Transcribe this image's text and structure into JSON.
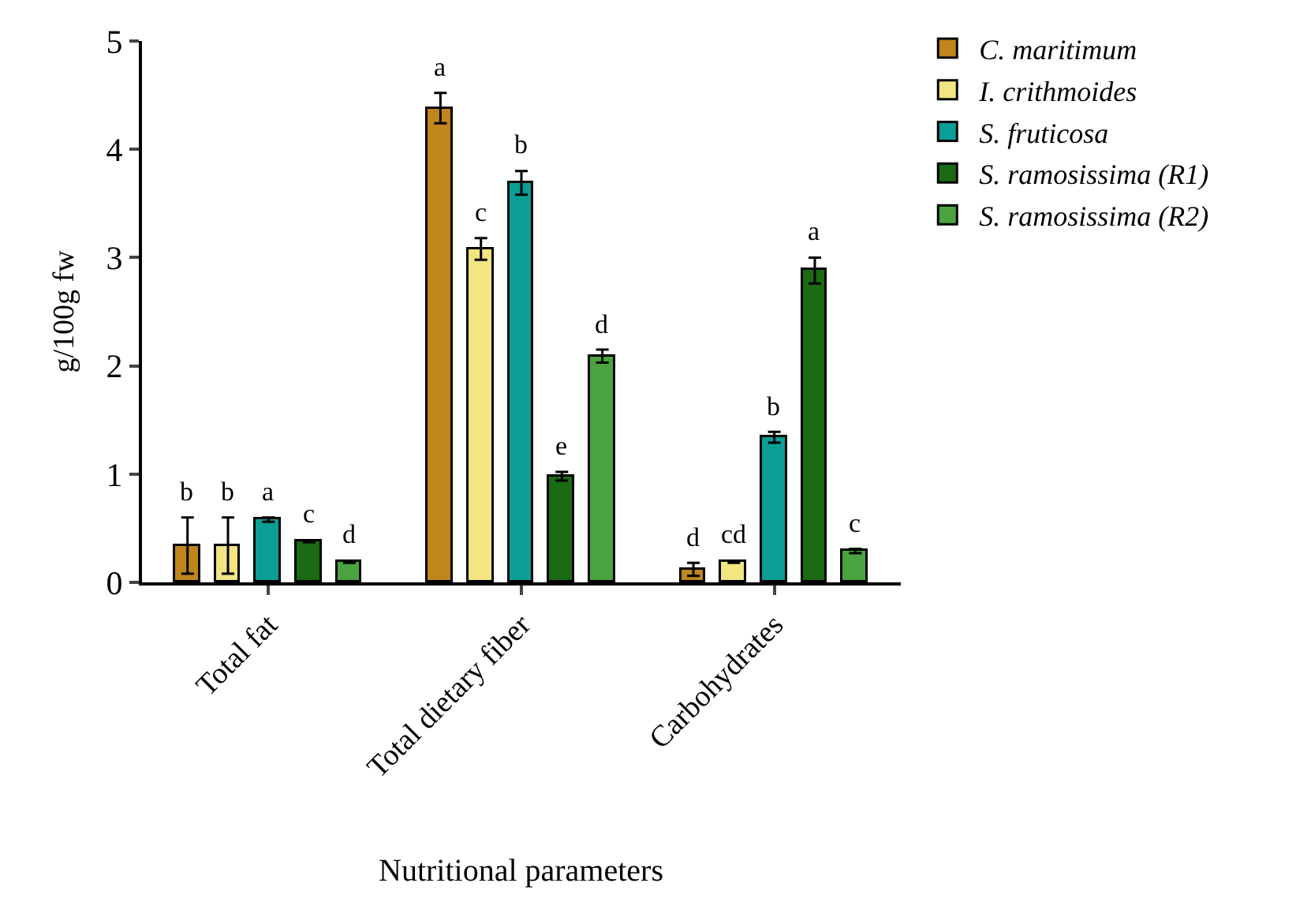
{
  "chart_data": {
    "type": "bar",
    "xlabel": "Nutritional parameters",
    "ylabel": "g/100g fw",
    "categories": [
      "Total fat",
      "Total dietary fiber",
      "Carbohydrates"
    ],
    "series": [
      {
        "name": "C. maritimum",
        "color": "#c0861c",
        "values": [
          0.34,
          4.38,
          0.12
        ],
        "errors": [
          0.26,
          0.14,
          0.06
        ],
        "value_labels": [
          "b",
          "a",
          "d"
        ]
      },
      {
        "name": "I. crithmoides",
        "color": "#f2e582",
        "values": [
          0.34,
          3.08,
          0.19
        ],
        "errors": [
          0.26,
          0.1,
          0.01
        ],
        "value_labels": [
          "b",
          "c",
          "cd"
        ]
      },
      {
        "name": "S. fruticosa",
        "color": "#0a9e96",
        "values": [
          0.58,
          3.69,
          1.34
        ],
        "errors": [
          0.02,
          0.11,
          0.05
        ],
        "value_labels": [
          "a",
          "b",
          "b"
        ]
      },
      {
        "name": "S. ramosissima (R1)",
        "color": "#1a6b14",
        "values": [
          0.38,
          0.98,
          2.88
        ],
        "errors": [
          0.01,
          0.04,
          0.12
        ],
        "value_labels": [
          "c",
          "e",
          "a"
        ]
      },
      {
        "name": "S. ramosissima (R2)",
        "color": "#4aa340",
        "values": [
          0.19,
          2.09,
          0.29
        ],
        "errors": [
          0.01,
          0.06,
          0.02
        ],
        "value_labels": [
          "d",
          "d",
          "c"
        ]
      }
    ],
    "ylim": [
      0,
      5
    ],
    "yticks": [
      0,
      1,
      2,
      3,
      4,
      5
    ],
    "legend": "top right"
  }
}
